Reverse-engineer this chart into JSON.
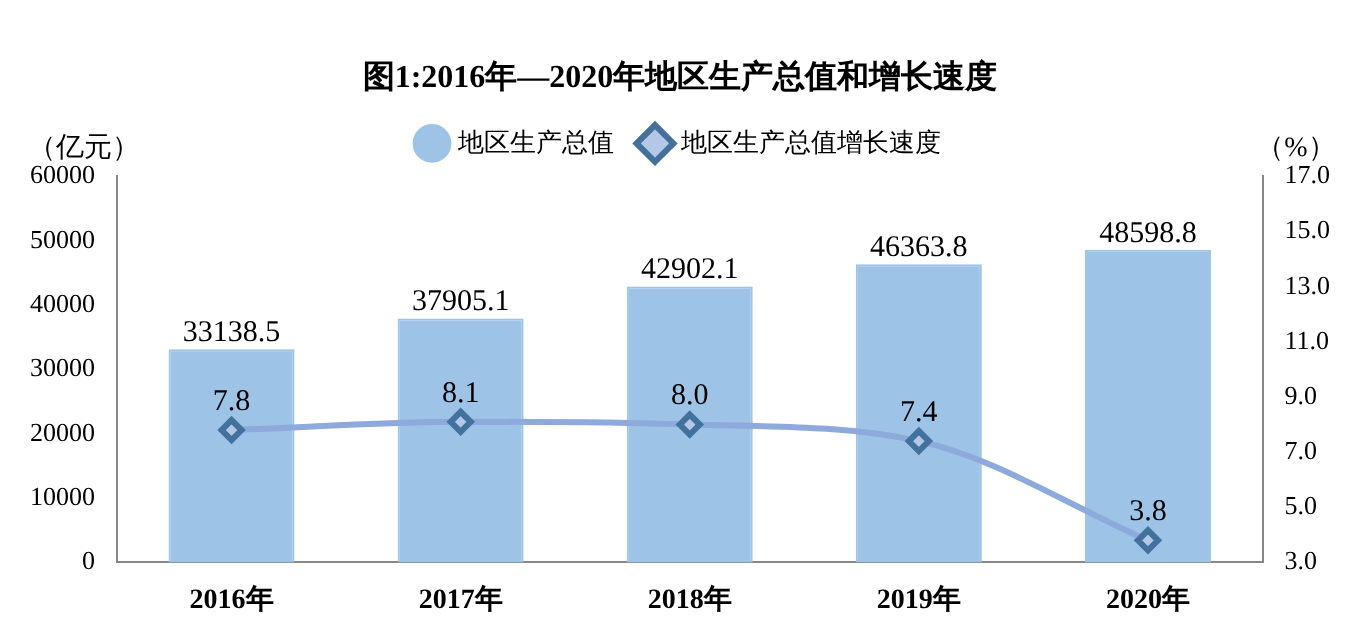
{
  "chart_data": {
    "type": "bar",
    "title": "图1:2016年—2020年地区生产总值和增长速度",
    "ylabel": "（亿元）",
    "y2label": "（%）",
    "categories": [
      "2016年",
      "2017年",
      "2018年",
      "2019年",
      "2020年"
    ],
    "series": [
      {
        "name": "地区生产总值",
        "color": "#9dc3e6",
        "values": [
          33138.5,
          37905.1,
          42902.1,
          46363.8,
          48598.8
        ],
        "value_labels": [
          "33138.5",
          "37905.1",
          "42902.1",
          "46363.8",
          "48598.8"
        ]
      },
      {
        "name": "地区生产总值增长速度",
        "type": "line",
        "axis": "y2",
        "color": "#8ea9db",
        "values": [
          7.8,
          8.1,
          8.0,
          7.4,
          3.8
        ],
        "value_labels": [
          "7.8",
          "8.1",
          "8.0",
          "7.4",
          "3.8"
        ]
      }
    ],
    "ylim": [
      0,
      60000
    ],
    "yticks": [
      0,
      10000,
      20000,
      30000,
      40000,
      50000,
      60000
    ],
    "y2lim": [
      3,
      17
    ],
    "y2ticks": [
      {
        "value": 3,
        "label": "3.0"
      },
      {
        "value": 5,
        "label": "5.0"
      },
      {
        "value": 7,
        "label": "7.0"
      },
      {
        "value": 9,
        "label": "9.0"
      },
      {
        "value": 11,
        "label": "11.0"
      },
      {
        "value": 13,
        "label": "13.0"
      },
      {
        "value": 15,
        "label": "15.0"
      },
      {
        "value": 17,
        "label": "17.0"
      }
    ],
    "legend": "top",
    "marker": "diamond",
    "line_style": "solid",
    "grid": false
  }
}
